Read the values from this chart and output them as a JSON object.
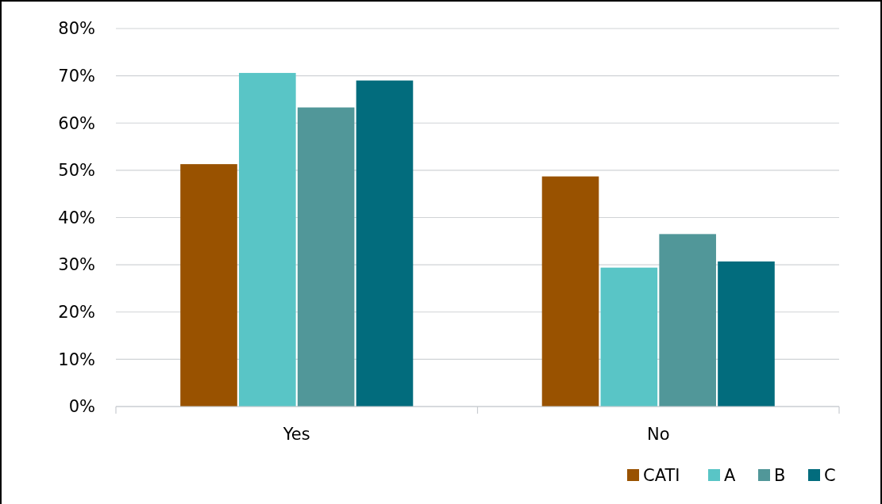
{
  "chart_data": {
    "type": "bar",
    "categories": [
      "Yes",
      "No"
    ],
    "series": [
      {
        "name": "CATI",
        "color": "#995200",
        "values": [
          51.3,
          48.7
        ]
      },
      {
        "name": "A",
        "color": "#59c5c6",
        "values": [
          70.6,
          29.4
        ]
      },
      {
        "name": "B",
        "color": "#519799",
        "values": [
          63.3,
          36.5
        ]
      },
      {
        "name": "C",
        "color": "#026c7d",
        "values": [
          69.0,
          30.7
        ]
      }
    ],
    "ylim": [
      0,
      80
    ],
    "yticks": [
      {
        "value": 0,
        "label": "0%"
      },
      {
        "value": 10,
        "label": "10%"
      },
      {
        "value": 20,
        "label": "20%"
      },
      {
        "value": 30,
        "label": "30%"
      },
      {
        "value": 40,
        "label": "40%"
      },
      {
        "value": 50,
        "label": "50%"
      },
      {
        "value": 60,
        "label": "60%"
      },
      {
        "value": 70,
        "label": "70%"
      },
      {
        "value": 80,
        "label": "80%"
      }
    ],
    "grid": "y",
    "legend": "bottom right"
  }
}
